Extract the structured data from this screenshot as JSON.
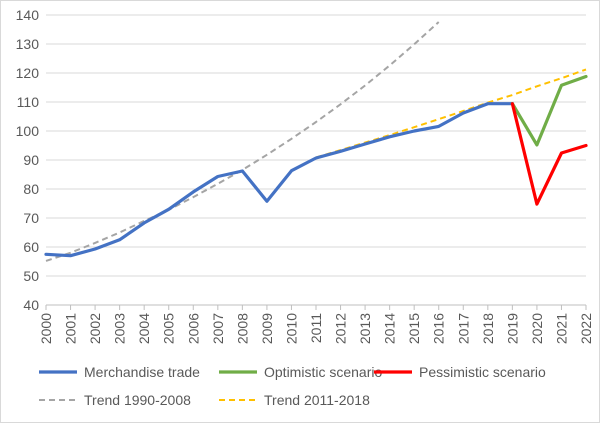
{
  "chart_data": {
    "type": "line",
    "title": "",
    "xlabel": "",
    "ylabel": "",
    "ylim": [
      40,
      140
    ],
    "yticks": [
      40,
      50,
      60,
      70,
      80,
      90,
      100,
      110,
      120,
      130,
      140
    ],
    "categories": [
      "2000",
      "2001",
      "2002",
      "2003",
      "2004",
      "2005",
      "2006",
      "2007",
      "2008",
      "2009",
      "2010",
      "2011",
      "2012",
      "2013",
      "2014",
      "2015",
      "2016",
      "2017",
      "2018",
      "2019",
      "2020",
      "2021",
      "2022"
    ],
    "grid": true,
    "legend": "bottom",
    "series": [
      {
        "name": "Merchandise trade",
        "color": "#4472C4",
        "dash": "solid",
        "points": [
          [
            2000,
            57.5
          ],
          [
            2001,
            57
          ],
          [
            2002,
            59.3
          ],
          [
            2003,
            62.5
          ],
          [
            2004,
            68.3
          ],
          [
            2005,
            73
          ],
          [
            2006,
            79
          ],
          [
            2007,
            84.3
          ],
          [
            2008,
            86.2
          ],
          [
            2009,
            75.8
          ],
          [
            2010,
            86.3
          ],
          [
            2011,
            90.7
          ],
          [
            2012,
            93
          ],
          [
            2013,
            95.5
          ],
          [
            2014,
            98
          ],
          [
            2015,
            100
          ],
          [
            2016,
            101.6
          ],
          [
            2017,
            106.2
          ],
          [
            2018,
            109.4
          ],
          [
            2019,
            109.4
          ]
        ]
      },
      {
        "name": "Optimistic scenario",
        "color": "#70AD47",
        "dash": "solid",
        "points": [
          [
            2019,
            109.4
          ],
          [
            2020,
            95.2
          ],
          [
            2021,
            115.8
          ],
          [
            2022,
            118.8
          ]
        ]
      },
      {
        "name": "Pessimistic scenario",
        "color": "#FF0000",
        "dash": "solid",
        "points": [
          [
            2019,
            109.4
          ],
          [
            2020,
            74.8
          ],
          [
            2021,
            92.4
          ],
          [
            2022,
            95
          ]
        ]
      },
      {
        "name": "Trend 1990-2008",
        "color": "#A5A5A5",
        "dash": "dashed",
        "points": [
          [
            2000,
            55.2
          ],
          [
            2001,
            58
          ],
          [
            2002,
            61.4
          ],
          [
            2003,
            65
          ],
          [
            2004,
            69
          ],
          [
            2005,
            72.8
          ],
          [
            2006,
            77.2
          ],
          [
            2007,
            81.8
          ],
          [
            2008,
            86.6
          ],
          [
            2009,
            91.8
          ],
          [
            2010,
            97.3
          ],
          [
            2011,
            103.1
          ],
          [
            2012,
            109.2
          ],
          [
            2013,
            115.7
          ],
          [
            2014,
            122.6
          ],
          [
            2015,
            129.9
          ],
          [
            2016,
            137.6
          ]
        ]
      },
      {
        "name": "Trend 2011-2018",
        "color": "#FFC000",
        "dash": "dashed",
        "points": [
          [
            2011,
            90.9
          ],
          [
            2012,
            93.4
          ],
          [
            2013,
            96
          ],
          [
            2014,
            98.6
          ],
          [
            2015,
            101.3
          ],
          [
            2016,
            104.1
          ],
          [
            2017,
            106.9
          ],
          [
            2018,
            109.8
          ],
          [
            2019,
            112.4
          ],
          [
            2020,
            115.4
          ],
          [
            2021,
            118.2
          ],
          [
            2022,
            121.2
          ]
        ]
      }
    ]
  }
}
